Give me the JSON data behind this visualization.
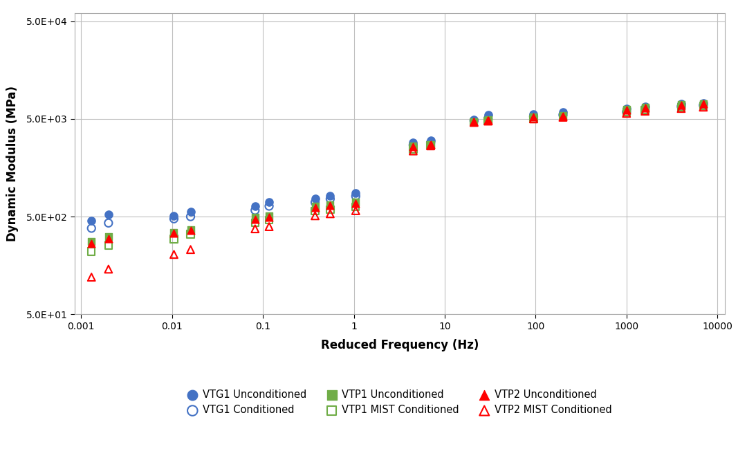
{
  "title": "",
  "xlabel": "Reduced Frequency (Hz)",
  "ylabel": "Dynamic Modulus (MPa)",
  "series": {
    "VTG1_Unconditioned": {
      "x": [
        0.0013,
        0.002,
        0.0105,
        0.016,
        0.082,
        0.117,
        0.375,
        0.55,
        1.05,
        4.5,
        7.0,
        21.0,
        30.0,
        95.0,
        200.0,
        1000,
        1600,
        4000,
        7000
      ],
      "y": [
        455,
        530,
        510,
        560,
        640,
        700,
        760,
        810,
        870,
        2850,
        3000,
        4900,
        5500,
        5600,
        5900,
        6400,
        6700,
        7100,
        7300
      ],
      "color": "#4472C4",
      "marker": "o",
      "filled": true,
      "label": "VTG1 Unconditioned",
      "size": 65
    },
    "VTG1_Conditioned": {
      "x": [
        0.0013,
        0.002,
        0.0105,
        0.016,
        0.082,
        0.117,
        0.375,
        0.55,
        1.05,
        4.5,
        7.0,
        21.0,
        30.0,
        95.0,
        200.0,
        1000,
        1600,
        4000,
        7000
      ],
      "y": [
        380,
        430,
        475,
        500,
        580,
        640,
        700,
        760,
        810,
        2700,
        2850,
        4800,
        5050,
        5300,
        5500,
        5900,
        6200,
        6700,
        6900
      ],
      "color": "#4472C4",
      "marker": "o",
      "filled": false,
      "label": "VTG1 Conditioned",
      "size": 65
    },
    "VTP1_Unconditioned": {
      "x": [
        0.0013,
        0.002,
        0.0105,
        0.016,
        0.082,
        0.117,
        0.375,
        0.55,
        1.05,
        4.5,
        7.0,
        21.0,
        30.0,
        95.0,
        200.0,
        1000,
        1600,
        4000,
        7000
      ],
      "y": [
        280,
        310,
        345,
        370,
        490,
        510,
        640,
        665,
        700,
        2650,
        2750,
        4700,
        4900,
        5250,
        5400,
        6300,
        6600,
        7000,
        7200
      ],
      "color": "#70AD47",
      "marker": "s",
      "filled": true,
      "label": "VTP1 Unconditioned",
      "size": 55
    },
    "VTP1_MIST_Conditioned": {
      "x": [
        0.0013,
        0.002,
        0.0105,
        0.016,
        0.082,
        0.117,
        0.375,
        0.55,
        1.05,
        4.5,
        7.0,
        21.0,
        30.0,
        95.0,
        200.0,
        1000,
        1600,
        4000,
        7000
      ],
      "y": [
        220,
        255,
        295,
        330,
        430,
        460,
        570,
        590,
        630,
        2450,
        2700,
        4600,
        4750,
        5000,
        5250,
        5900,
        6200,
        6600,
        6800
      ],
      "color": "#70AD47",
      "marker": "s",
      "filled": false,
      "label": "VTP1 MIST Conditioned",
      "size": 55
    },
    "VTP2_Unconditioned": {
      "x": [
        0.0013,
        0.002,
        0.0105,
        0.016,
        0.082,
        0.117,
        0.375,
        0.55,
        1.05,
        4.5,
        7.0,
        21.0,
        30.0,
        95.0,
        200.0,
        1000,
        1600,
        4000,
        7000
      ],
      "y": [
        265,
        295,
        340,
        360,
        470,
        490,
        620,
        645,
        680,
        2600,
        2720,
        4700,
        4850,
        5200,
        5350,
        6200,
        6500,
        6900,
        7100
      ],
      "color": "#FF0000",
      "marker": "^",
      "filled": true,
      "label": "VTP2 Unconditioned",
      "size": 60
    },
    "VTP2_MIST_Conditioned": {
      "x": [
        0.0013,
        0.002,
        0.0105,
        0.016,
        0.082,
        0.117,
        0.375,
        0.55,
        1.05,
        4.5,
        7.0,
        21.0,
        30.0,
        95.0,
        200.0,
        1000,
        1600,
        4000,
        7000
      ],
      "y": [
        120,
        145,
        205,
        230,
        375,
        395,
        510,
        535,
        575,
        2350,
        2650,
        4600,
        4750,
        5000,
        5200,
        5700,
        6000,
        6400,
        6600
      ],
      "color": "#FF0000",
      "marker": "^",
      "filled": false,
      "label": "VTP2 MIST Conditioned",
      "size": 60
    }
  },
  "grid_color": "#BFBFBF",
  "background_color": "#FFFFFF",
  "legend_order": [
    "VTG1_Unconditioned",
    "VTG1_Conditioned",
    "VTP1_Unconditioned",
    "VTP1_MIST_Conditioned",
    "VTP2_Unconditioned",
    "VTP2_MIST_Conditioned"
  ]
}
